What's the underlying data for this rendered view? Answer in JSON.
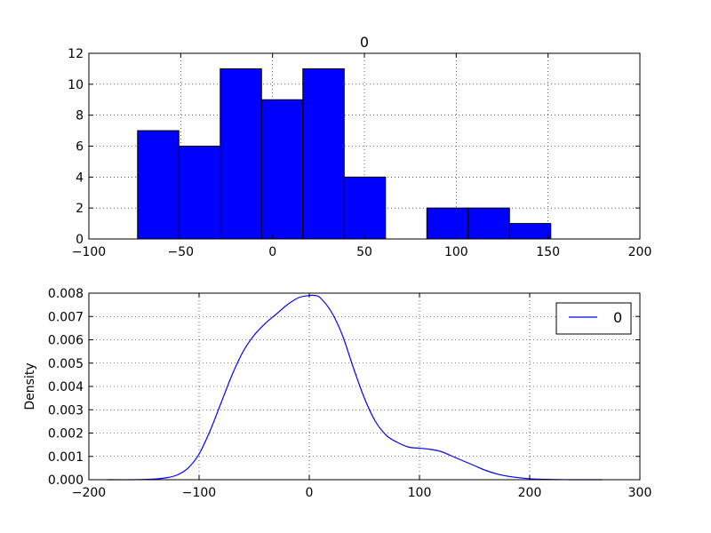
{
  "chart_data": [
    {
      "type": "bar",
      "subtype": "histogram",
      "title": "0",
      "xlabel": "",
      "ylabel": "",
      "xlim": [
        -100,
        200
      ],
      "ylim": [
        0,
        12
      ],
      "xticks": [
        -100,
        -50,
        0,
        50,
        100,
        150,
        200
      ],
      "yticks": [
        0,
        2,
        4,
        6,
        8,
        10,
        12
      ],
      "xtick_labels": [
        "−100",
        "−50",
        "0",
        "50",
        "100",
        "150",
        "200"
      ],
      "ytick_labels": [
        "0",
        "2",
        "4",
        "6",
        "8",
        "10",
        "12"
      ],
      "grid": true,
      "bar_color": "#0000ff",
      "bins": [
        {
          "start": -73.5,
          "end": -51.0,
          "count": 7
        },
        {
          "start": -51.0,
          "end": -28.5,
          "count": 6
        },
        {
          "start": -28.5,
          "end": -6.0,
          "count": 11
        },
        {
          "start": -6.0,
          "end": 16.5,
          "count": 9
        },
        {
          "start": 16.5,
          "end": 39.0,
          "count": 11
        },
        {
          "start": 39.0,
          "end": 61.5,
          "count": 4
        },
        {
          "start": 61.5,
          "end": 84.0,
          "count": 0
        },
        {
          "start": 84.0,
          "end": 106.5,
          "count": 2
        },
        {
          "start": 106.5,
          "end": 129.0,
          "count": 2
        },
        {
          "start": 129.0,
          "end": 151.5,
          "count": 1
        }
      ]
    },
    {
      "type": "line",
      "subtype": "density",
      "title": "",
      "xlabel": "",
      "ylabel": "Density",
      "xlim": [
        -200,
        300
      ],
      "ylim": [
        0,
        0.008
      ],
      "xticks": [
        -200,
        -100,
        0,
        100,
        200,
        300
      ],
      "yticks": [
        0,
        0.001,
        0.002,
        0.003,
        0.004,
        0.005,
        0.006,
        0.007,
        0.008
      ],
      "xtick_labels": [
        "−200",
        "−100",
        "0",
        "100",
        "200",
        "300"
      ],
      "ytick_labels": [
        "0.000",
        "0.001",
        "0.002",
        "0.003",
        "0.004",
        "0.005",
        "0.006",
        "0.007",
        "0.008"
      ],
      "grid": true,
      "legend": {
        "position": "top-right",
        "entries": [
          "0"
        ]
      },
      "series": [
        {
          "name": "0",
          "color": "#0000ff",
          "x": [
            -183,
            -160,
            -140,
            -130,
            -120,
            -110,
            -100,
            -90,
            -80,
            -70,
            -60,
            -50,
            -40,
            -30,
            -20,
            -10,
            0,
            5,
            10,
            20,
            30,
            40,
            50,
            60,
            70,
            80,
            90,
            100,
            110,
            120,
            130,
            140,
            150,
            160,
            170,
            180,
            200,
            220,
            240,
            266
          ],
          "y": [
            0.0,
            0.0,
            3e-05,
            8e-05,
            0.0002,
            0.0005,
            0.0011,
            0.0021,
            0.0033,
            0.0045,
            0.0055,
            0.0062,
            0.0067,
            0.0071,
            0.0075,
            0.0078,
            0.0079,
            0.0079,
            0.0078,
            0.0072,
            0.0062,
            0.0048,
            0.0035,
            0.0025,
            0.0019,
            0.0016,
            0.0014,
            0.00135,
            0.0013,
            0.0012,
            0.001,
            0.0008,
            0.0006,
            0.0004,
            0.00025,
            0.00015,
            4e-05,
            1e-05,
            0.0,
            0.0
          ]
        }
      ]
    }
  ]
}
